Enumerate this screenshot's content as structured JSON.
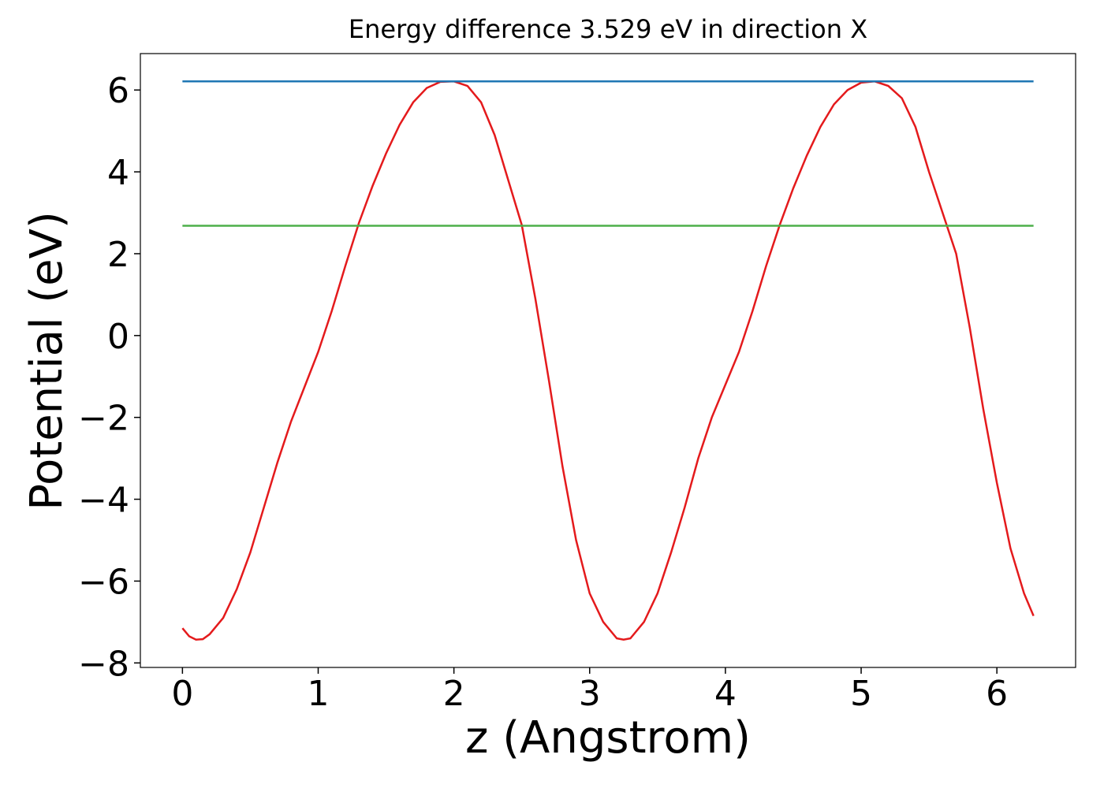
{
  "chart_data": {
    "type": "line",
    "title": "Energy difference 3.529 eV in direction X",
    "xlabel": "z (Angstrom)",
    "ylabel": "Potential (eV)",
    "xlim": [
      -0.31,
      6.58
    ],
    "ylim": [
      -8.11,
      6.89
    ],
    "xticks": [
      0,
      1,
      2,
      3,
      4,
      5,
      6
    ],
    "yticks": [
      {
        "value": -8,
        "label": "−8"
      },
      {
        "value": -6,
        "label": "−6"
      },
      {
        "value": -4,
        "label": "−4"
      },
      {
        "value": -2,
        "label": "−2"
      },
      0,
      2,
      4,
      6
    ],
    "grid": false,
    "series": [
      {
        "color": "#e41a1c",
        "x": [
          0,
          0.05,
          0.1,
          0.15,
          0.2,
          0.3,
          0.4,
          0.5,
          0.6,
          0.7,
          0.8,
          0.9,
          1.0,
          1.1,
          1.2,
          1.3,
          1.4,
          1.5,
          1.6,
          1.7,
          1.8,
          1.9,
          2.0,
          2.1,
          2.2,
          2.3,
          2.4,
          2.5,
          2.6,
          2.7,
          2.8,
          2.9,
          3.0,
          3.1,
          3.2,
          3.25,
          3.3,
          3.4,
          3.5,
          3.6,
          3.7,
          3.8,
          3.9,
          4.0,
          4.1,
          4.2,
          4.3,
          4.4,
          4.5,
          4.6,
          4.7,
          4.8,
          4.9,
          5.0,
          5.1,
          5.2,
          5.3,
          5.4,
          5.5,
          5.6,
          5.7,
          5.8,
          5.9,
          6.0,
          6.1,
          6.2,
          6.27
        ],
        "values": [
          -7.15,
          -7.35,
          -7.43,
          -7.42,
          -7.3,
          -6.9,
          -6.2,
          -5.3,
          -4.2,
          -3.1,
          -2.1,
          -1.25,
          -0.4,
          0.6,
          1.7,
          2.75,
          3.65,
          4.45,
          5.15,
          5.7,
          6.05,
          6.2,
          6.21,
          6.1,
          5.7,
          4.9,
          3.8,
          2.7,
          0.9,
          -1.1,
          -3.2,
          -5.0,
          -6.3,
          -7.0,
          -7.4,
          -7.43,
          -7.4,
          -7.0,
          -6.3,
          -5.3,
          -4.2,
          -3.0,
          -2.0,
          -1.2,
          -0.4,
          0.6,
          1.7,
          2.7,
          3.6,
          4.4,
          5.1,
          5.65,
          6.0,
          6.18,
          6.21,
          6.1,
          5.8,
          5.1,
          4.0,
          3.0,
          2.0,
          0.2,
          -1.8,
          -3.6,
          -5.2,
          -6.3,
          -6.85
        ]
      },
      {
        "color": "#1f77b4",
        "x": [
          0,
          6.27
        ],
        "values": [
          6.212,
          6.212
        ]
      },
      {
        "color": "#4daf4a",
        "x": [
          0,
          6.27
        ],
        "values": [
          2.683,
          2.683
        ]
      }
    ]
  }
}
